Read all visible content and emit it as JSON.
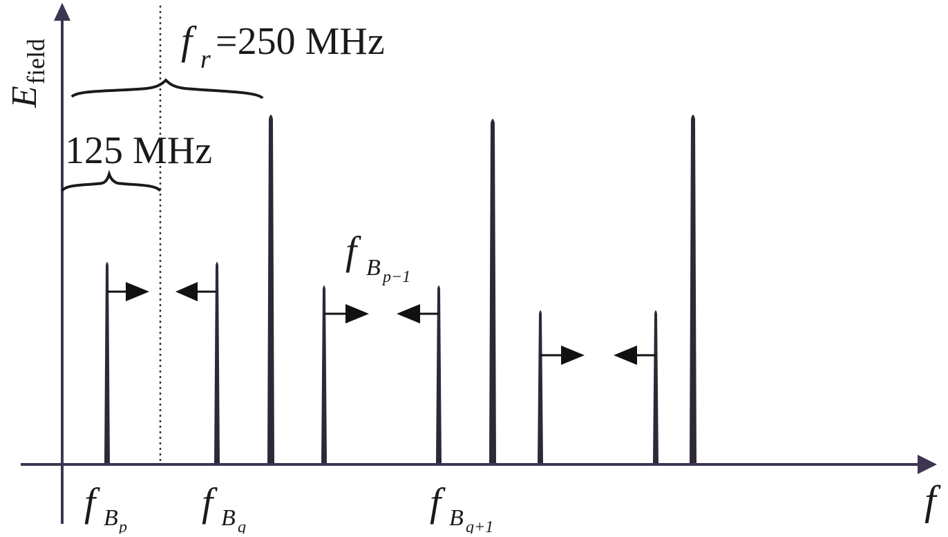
{
  "colors": {
    "axis": "#3d3552",
    "line": "#2f2838",
    "text": "#1a1a1a"
  },
  "labels": {
    "y_axis": {
      "main": "E",
      "sub": "field"
    },
    "x_axis": "f",
    "rep_rate": {
      "main": "f",
      "sub": "r",
      "value": "=250 MHz"
    },
    "half_rate": "125 MHz",
    "f_bp": {
      "main": "f",
      "sub": "B",
      "subsub": "p"
    },
    "f_bq": {
      "main": "f",
      "sub": "B",
      "subsub": "q"
    },
    "f_bq1": {
      "main": "f",
      "sub": "B",
      "subsub": "q+1"
    },
    "f_bp1": {
      "main": "f",
      "sub": "B",
      "subsub": "p−1"
    }
  },
  "lines": {
    "comb": [
      {
        "name": "comb-line-1",
        "height": 1.0
      },
      {
        "name": "comb-line-2",
        "height": 0.99
      },
      {
        "name": "comb-line-3",
        "height": 1.0
      }
    ],
    "beat_pairs": [
      {
        "name": "beat-pair-1",
        "height": 0.58,
        "arrows": "inward"
      },
      {
        "name": "beat-pair-2",
        "height": 0.51,
        "arrows": "inward"
      },
      {
        "name": "beat-pair-3",
        "height": 0.44,
        "arrows": "inward"
      }
    ]
  }
}
